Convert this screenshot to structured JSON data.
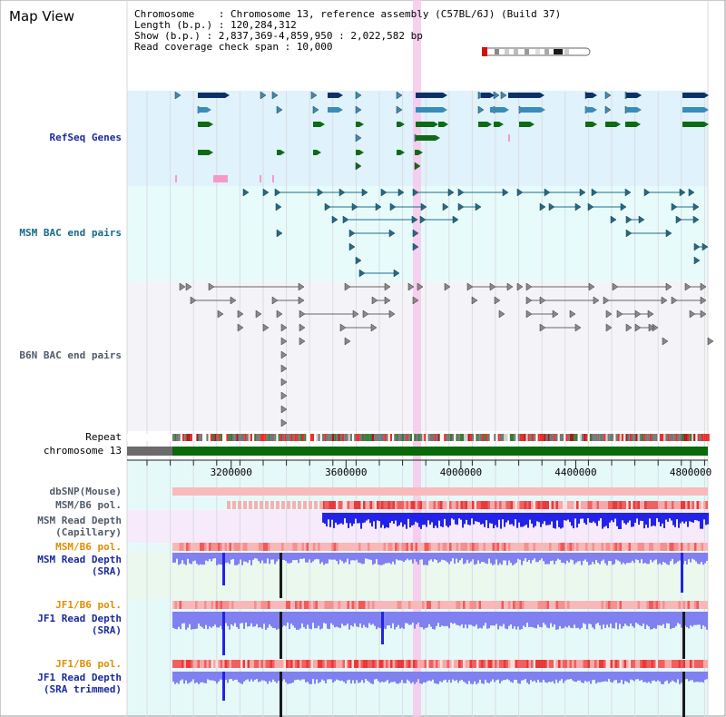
{
  "title": "Map View",
  "info": {
    "chromosome": "Chromosome    : Chromosome 13, reference assembly (C57BL/6J) (Build 37)",
    "length": "Length (b.p.) : 120,284,312",
    "show": "Show (b.p.) : 2,837,369-4,859,950 : 2,022,582 bp",
    "coverage": "Read coverage check span : 10,000"
  },
  "tracks": {
    "refseq": "RefSeq Genes",
    "msm_bac": "MSM BAC end pairs",
    "b6n_bac": "B6N BAC end pairs",
    "repeat": "Repeat",
    "chromosome": "chromosome 13",
    "dbsnp": "dbSNP(Mouse)",
    "msm_b6_pol_1": "MSM/B6 pol.",
    "msm_read_depth_cap_1": "MSM Read Depth",
    "msm_read_depth_cap_2": "(Capillary)",
    "msm_b6_pol_2": "MSM/B6 pol.",
    "msm_read_depth_sra_1": "MSM Read Depth",
    "msm_read_depth_sra_2": "(SRA)",
    "jf1_b6_pol_1": "JF1/B6 pol.",
    "jf1_read_depth_sra_1": "JF1 Read Depth",
    "jf1_read_depth_sra_2": "(SRA)",
    "jf1_b6_pol_2": "JF1/B6 pol.",
    "jf1_read_depth_trim_1": "JF1 Read Depth",
    "jf1_read_depth_trim_2": "(SRA trimmed)"
  },
  "axis": {
    "ticks": [
      "3200000",
      "3600000",
      "4000000",
      "4400000",
      "4800000"
    ],
    "tick_values": [
      3200000,
      3600000,
      4000000,
      4400000,
      4800000
    ],
    "range": [
      2837369,
      4859950
    ]
  },
  "colors": {
    "refseq_bg": "#e0f2fb",
    "msm_bac_bg": "#e8fbfb",
    "b6n_bg": "#f4f4f8",
    "highlight": "#f7c8ec",
    "gene_dark": "#0d3068",
    "gene_mid": "#3a8cb8",
    "gene_green": "#0e6a14",
    "pink": "#f59ac8",
    "msm_bac": "#1b6d8c",
    "b6n": "#8a8a8a",
    "label_navy": "#1a2a9c",
    "label_teal": "#156a8a",
    "label_grey": "#505a6a",
    "label_orange": "#e08e00",
    "depth_blue": "#2323e8",
    "depth_light": "#8080f0",
    "chrom_green": "#0a6a0a"
  }
}
